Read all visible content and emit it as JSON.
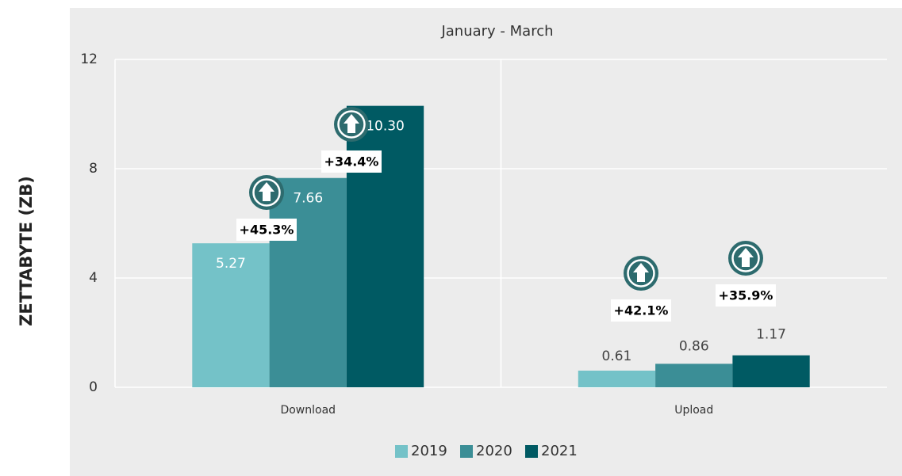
{
  "chart_data": {
    "type": "bar",
    "title": "January - March",
    "y_label": "ZETTABYTE (ZB)",
    "categories": [
      "Download",
      "Upload"
    ],
    "series": [
      {
        "name": "2019",
        "color": "#74c2c8",
        "values": [
          5.27,
          0.61
        ],
        "value_labels": [
          "5.27",
          "0.61"
        ]
      },
      {
        "name": "2020",
        "color": "#3b8e96",
        "values": [
          7.66,
          0.86
        ],
        "value_labels": [
          "7.66",
          "0.86"
        ]
      },
      {
        "name": "2021",
        "color": "#005a63",
        "values": [
          10.3,
          1.17
        ],
        "value_labels": [
          "10.30",
          "1.17"
        ]
      }
    ],
    "annotations": [
      "+45.3%",
      "+34.4%",
      "+42.1%",
      "+35.9%"
    ],
    "ylim": [
      0,
      12
    ],
    "yticks": [
      0,
      4,
      8,
      12
    ],
    "grid": true,
    "legend": "bottom"
  }
}
